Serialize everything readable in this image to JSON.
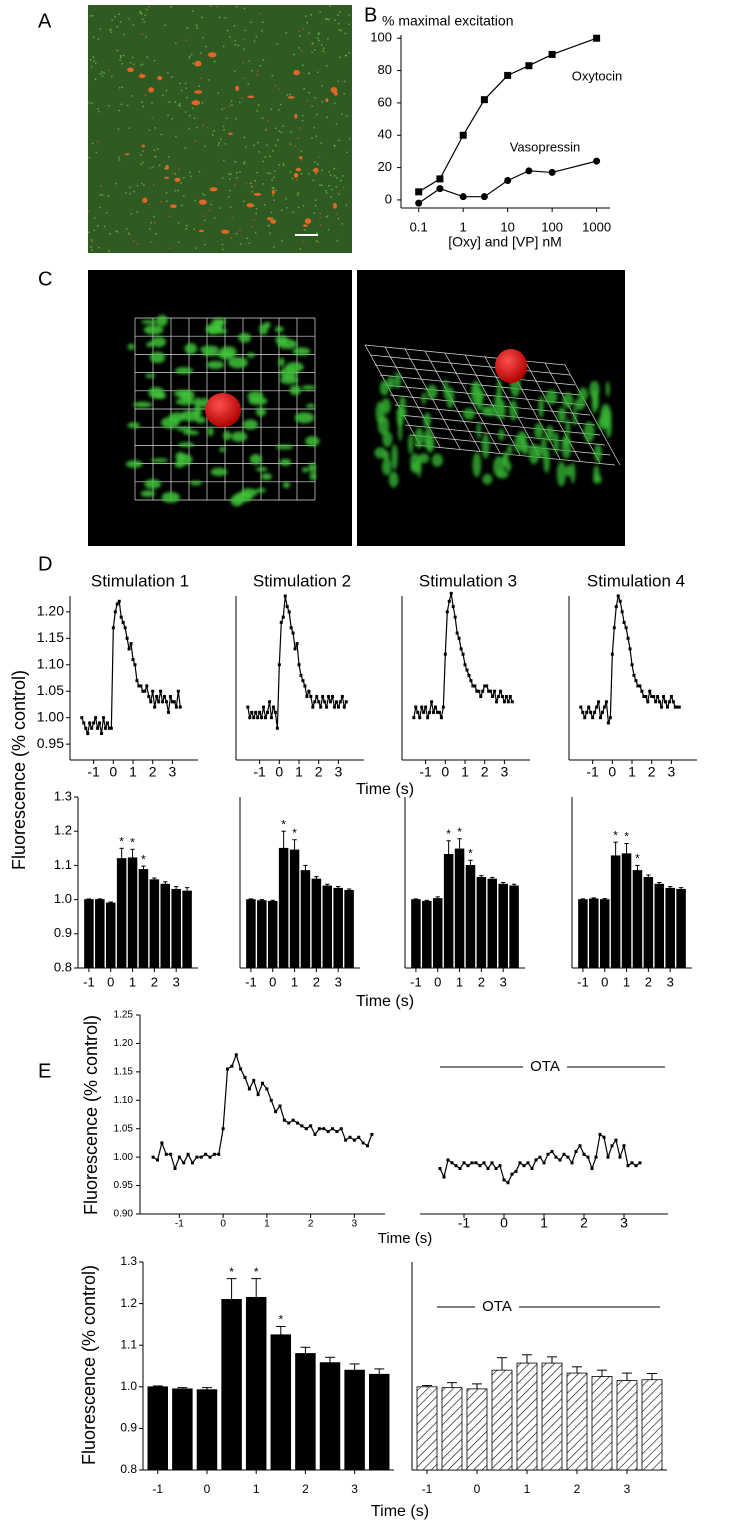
{
  "panel_labels": [
    "A",
    "B",
    "C",
    "D",
    "E"
  ],
  "chart_data": [
    {
      "type": "line",
      "ylabel": "% maximal excitation",
      "xlabel": "[Oxy] and [VP] nM",
      "xscale": "log",
      "x": [
        0.1,
        0.3,
        1,
        3,
        10,
        30,
        100,
        1000
      ],
      "series": [
        {
          "name": "Oxytocin",
          "color": "#000000",
          "marker": "square",
          "values": [
            5,
            13,
            40,
            62,
            77,
            83,
            90,
            100
          ]
        },
        {
          "name": "Vasopressin",
          "color": "#000000",
          "marker": "circle",
          "values": [
            -2,
            7,
            2,
            2,
            12,
            18,
            17,
            24
          ]
        }
      ],
      "xlim": [
        0.04,
        2000
      ],
      "ylim": [
        -5,
        102
      ],
      "xticks": [
        0.1,
        1,
        10,
        100,
        1000
      ],
      "yticks": [
        0,
        20,
        40,
        60,
        80,
        100
      ]
    },
    {
      "type": "line",
      "title": "Stimulation 1",
      "ylabel": "Fluorescence (% control)",
      "color": "#000000",
      "marker": "square",
      "x": [
        -1.6,
        -1.5,
        -1.4,
        -1.3,
        -1.2,
        -1.1,
        -1,
        -0.9,
        -0.8,
        -0.7,
        -0.6,
        -0.5,
        -0.4,
        -0.3,
        -0.2,
        -0.1,
        0,
        0.1,
        0.2,
        0.3,
        0.4,
        0.5,
        0.6,
        0.7,
        0.8,
        0.9,
        1,
        1.1,
        1.2,
        1.3,
        1.4,
        1.5,
        1.6,
        1.7,
        1.8,
        1.9,
        2,
        2.1,
        2.2,
        2.3,
        2.4,
        2.5,
        2.6,
        2.7,
        2.8,
        2.9,
        3,
        3.1,
        3.2,
        3.3,
        3.4
      ],
      "values": [
        1.0,
        0.99,
        0.98,
        0.97,
        0.99,
        0.98,
        0.99,
        1.0,
        0.98,
        0.99,
        0.97,
        1.0,
        0.98,
        0.99,
        0.98,
        0.98,
        1.17,
        1.2,
        1.215,
        1.22,
        1.19,
        1.18,
        1.17,
        1.15,
        1.13,
        1.14,
        1.11,
        1.1,
        1.07,
        1.06,
        1.06,
        1.05,
        1.05,
        1.06,
        1.04,
        1.03,
        1.05,
        1.02,
        1.04,
        1.03,
        1.05,
        1.03,
        1.04,
        1.03,
        1.01,
        1.04,
        1.03,
        1.03,
        1.02,
        1.05,
        1.02
      ],
      "xlim": [
        -2.2,
        4.3
      ],
      "ylim": [
        0.92,
        1.23
      ],
      "xticks": [
        -1,
        0,
        1,
        2,
        3
      ],
      "yticks": [
        0.95,
        {
          "value": 1,
          "label": "1.00"
        },
        1.05,
        {
          "value": 1.1,
          "label": "1.10"
        },
        1.15,
        {
          "value": 1.2,
          "label": "1.20"
        }
      ]
    },
    {
      "type": "line",
      "title": "Stimulation 2",
      "xlabel": "Time (s)",
      "color": "#000000",
      "marker": "square",
      "x": [
        -1.6,
        -1.5,
        -1.4,
        -1.3,
        -1.2,
        -1.1,
        -1,
        -0.9,
        -0.8,
        -0.7,
        -0.6,
        -0.5,
        -0.4,
        -0.3,
        -0.2,
        -0.1,
        0,
        0.1,
        0.2,
        0.3,
        0.4,
        0.5,
        0.6,
        0.7,
        0.8,
        0.9,
        1,
        1.1,
        1.2,
        1.3,
        1.4,
        1.5,
        1.6,
        1.7,
        1.8,
        1.9,
        2,
        2.1,
        2.2,
        2.3,
        2.4,
        2.5,
        2.6,
        2.7,
        2.8,
        2.9,
        3,
        3.1,
        3.2,
        3.3,
        3.4
      ],
      "values": [
        1.02,
        1.0,
        1.01,
        1.0,
        1.01,
        1.0,
        1.01,
        1.0,
        1.02,
        1.0,
        1.01,
        1.03,
        1.0,
        1.02,
        1.01,
        0.98,
        1.1,
        1.18,
        1.19,
        1.23,
        1.21,
        1.2,
        1.17,
        1.16,
        1.13,
        1.14,
        1.1,
        1.08,
        1.07,
        1.06,
        1.04,
        1.05,
        1.04,
        1.02,
        1.03,
        1.04,
        1.03,
        1.02,
        1.04,
        1.03,
        1.02,
        1.04,
        1.03,
        1.04,
        1.02,
        1.03,
        1.02,
        1.03,
        1.04,
        1.02,
        1.03
      ],
      "xlim": [
        -2.2,
        4.3
      ],
      "ylim": [
        0.92,
        1.23
      ],
      "xticks": [
        -1,
        0,
        1,
        2,
        3
      ]
    },
    {
      "type": "line",
      "title": "Stimulation 3",
      "color": "#000000",
      "marker": "square",
      "x": [
        -1.6,
        -1.5,
        -1.4,
        -1.3,
        -1.2,
        -1.1,
        -1,
        -0.9,
        -0.8,
        -0.7,
        -0.6,
        -0.5,
        -0.4,
        -0.3,
        -0.2,
        -0.1,
        0,
        0.1,
        0.2,
        0.3,
        0.4,
        0.5,
        0.6,
        0.7,
        0.8,
        0.9,
        1,
        1.1,
        1.2,
        1.3,
        1.4,
        1.5,
        1.6,
        1.7,
        1.8,
        1.9,
        2,
        2.1,
        2.2,
        2.3,
        2.4,
        2.5,
        2.6,
        2.7,
        2.8,
        2.9,
        3,
        3.1,
        3.2,
        3.3,
        3.4
      ],
      "values": [
        1.0,
        1.02,
        1.01,
        1.0,
        1.02,
        1.01,
        1.02,
        1.0,
        1.01,
        1.03,
        1.01,
        1.02,
        1.01,
        1.01,
        1.0,
        1.02,
        1.12,
        1.2,
        1.22,
        1.235,
        1.21,
        1.19,
        1.16,
        1.15,
        1.13,
        1.12,
        1.1,
        1.09,
        1.08,
        1.07,
        1.06,
        1.06,
        1.05,
        1.05,
        1.04,
        1.05,
        1.06,
        1.06,
        1.05,
        1.05,
        1.04,
        1.05,
        1.03,
        1.04,
        1.05,
        1.04,
        1.03,
        1.04,
        1.03,
        1.04,
        1.03
      ],
      "xlim": [
        -2.2,
        4.3
      ],
      "ylim": [
        0.92,
        1.23
      ],
      "xticks": [
        -1,
        0,
        1,
        2,
        3
      ]
    },
    {
      "type": "line",
      "title": "Stimulation 4",
      "color": "#000000",
      "marker": "square",
      "x": [
        -1.6,
        -1.5,
        -1.4,
        -1.3,
        -1.2,
        -1.1,
        -1,
        -0.9,
        -0.8,
        -0.7,
        -0.6,
        -0.5,
        -0.4,
        -0.3,
        -0.2,
        -0.1,
        0,
        0.1,
        0.2,
        0.3,
        0.4,
        0.5,
        0.6,
        0.7,
        0.8,
        0.9,
        1,
        1.1,
        1.2,
        1.3,
        1.4,
        1.5,
        1.6,
        1.7,
        1.8,
        1.9,
        2,
        2.1,
        2.2,
        2.3,
        2.4,
        2.5,
        2.6,
        2.7,
        2.8,
        2.9,
        3,
        3.1,
        3.2,
        3.3,
        3.4
      ],
      "values": [
        1.02,
        1.01,
        1.0,
        1.01,
        1.02,
        1.01,
        1.0,
        1.01,
        1.02,
        1.03,
        1.0,
        1.01,
        1.02,
        1.03,
        0.99,
        1.0,
        1.12,
        1.17,
        1.21,
        1.23,
        1.22,
        1.2,
        1.18,
        1.17,
        1.15,
        1.13,
        1.1,
        1.08,
        1.07,
        1.06,
        1.06,
        1.05,
        1.04,
        1.04,
        1.03,
        1.05,
        1.04,
        1.04,
        1.03,
        1.04,
        1.03,
        1.02,
        1.04,
        1.03,
        1.02,
        1.03,
        1.04,
        1.03,
        1.02,
        1.02,
        1.02
      ],
      "xlim": [
        -2.2,
        4.3
      ],
      "ylim": [
        0.92,
        1.23
      ],
      "xticks": [
        -1,
        0,
        1,
        2,
        3
      ]
    },
    {
      "type": "bar",
      "color": "#000000",
      "significance_label": "*",
      "x": [
        -1,
        -0.5,
        0,
        0.5,
        1,
        1.5,
        2,
        2.5,
        3,
        3.5
      ],
      "values": [
        1.0,
        1.0,
        0.99,
        1.12,
        1.122,
        1.088,
        1.058,
        1.045,
        1.03,
        1.025
      ],
      "errors": [
        0.002,
        0.002,
        0.003,
        0.03,
        0.025,
        0.01,
        0.005,
        0.007,
        0.008,
        0.01
      ],
      "significant": [
        false,
        false,
        false,
        true,
        true,
        true,
        false,
        false,
        false,
        false
      ],
      "xlim": [
        -1.5,
        4
      ],
      "ylim": [
        0.8,
        1.3
      ],
      "xticks": [
        -1,
        0,
        1,
        2,
        3
      ],
      "yticks": [
        0.8,
        0.9,
        {
          "value": 1,
          "label": "1.0"
        },
        1.1,
        1.2,
        1.3
      ]
    },
    {
      "type": "bar",
      "color": "#000000",
      "significance_label": "*",
      "xlabel": "Time (s)",
      "x": [
        -1,
        -0.5,
        0,
        0.5,
        1,
        1.5,
        2,
        2.5,
        3,
        3.5
      ],
      "values": [
        1.0,
        0.997,
        0.995,
        1.15,
        1.145,
        1.085,
        1.06,
        1.04,
        1.033,
        1.027
      ],
      "errors": [
        0.002,
        0.003,
        0.003,
        0.05,
        0.03,
        0.015,
        0.007,
        0.005,
        0.005,
        0.004
      ],
      "significant": [
        false,
        false,
        false,
        true,
        true,
        false,
        false,
        false,
        false,
        false
      ],
      "xlim": [
        -1.5,
        4
      ],
      "ylim": [
        0.8,
        1.3
      ],
      "xticks": [
        -1,
        0,
        1,
        2,
        3
      ]
    },
    {
      "type": "bar",
      "color": "#000000",
      "significance_label": "*",
      "x": [
        -1,
        -0.5,
        0,
        0.5,
        1,
        1.5,
        2,
        2.5,
        3,
        3.5
      ],
      "values": [
        1.0,
        0.995,
        1.003,
        1.132,
        1.148,
        1.1,
        1.065,
        1.06,
        1.045,
        1.04
      ],
      "errors": [
        0.002,
        0.003,
        0.005,
        0.04,
        0.03,
        0.015,
        0.005,
        0.005,
        0.005,
        0.005
      ],
      "significant": [
        false,
        false,
        false,
        true,
        true,
        true,
        false,
        false,
        false,
        false
      ],
      "xlim": [
        -1.5,
        4
      ],
      "ylim": [
        0.8,
        1.3
      ],
      "xticks": [
        -1,
        0,
        1,
        2,
        3
      ]
    },
    {
      "type": "bar",
      "color": "#000000",
      "significance_label": "*",
      "x": [
        -1,
        -0.5,
        0,
        0.5,
        1,
        1.5,
        2,
        2.5,
        3,
        3.5
      ],
      "values": [
        1.0,
        1.002,
        1.0,
        1.128,
        1.134,
        1.085,
        1.065,
        1.045,
        1.033,
        1.03
      ],
      "errors": [
        0.002,
        0.003,
        0.003,
        0.04,
        0.03,
        0.015,
        0.007,
        0.005,
        0.005,
        0.005
      ],
      "significant": [
        false,
        false,
        false,
        true,
        true,
        true,
        false,
        false,
        false,
        false
      ],
      "xlim": [
        -1.5,
        4
      ],
      "ylim": [
        0.8,
        1.3
      ],
      "xticks": [
        -1,
        0,
        1,
        2,
        3
      ]
    },
    {
      "type": "line",
      "ylabel": "Fluorescence (% control)",
      "xlabel": "Time (s)",
      "color": "#000000",
      "marker": "square",
      "x": [
        -1.6,
        -1.5,
        -1.4,
        -1.3,
        -1.2,
        -1.1,
        -1,
        -0.9,
        -0.8,
        -0.7,
        -0.6,
        -0.5,
        -0.4,
        -0.3,
        -0.2,
        -0.1,
        0,
        0.1,
        0.2,
        0.3,
        0.4,
        0.5,
        0.6,
        0.7,
        0.8,
        0.9,
        1,
        1.1,
        1.2,
        1.3,
        1.4,
        1.5,
        1.6,
        1.7,
        1.8,
        1.9,
        2,
        2.1,
        2.2,
        2.3,
        2.4,
        2.5,
        2.6,
        2.7,
        2.8,
        2.9,
        3,
        3.1,
        3.2,
        3.3,
        3.4
      ],
      "values": [
        1.0,
        0.995,
        1.025,
        1.005,
        1.005,
        0.98,
        1.0,
        0.99,
        1.005,
        0.99,
        1.0,
        1.0,
        1.005,
        1.0,
        1.005,
        1.005,
        1.05,
        1.155,
        1.16,
        1.18,
        1.155,
        1.14,
        1.12,
        1.135,
        1.11,
        1.13,
        1.12,
        1.1,
        1.08,
        1.09,
        1.065,
        1.06,
        1.065,
        1.06,
        1.055,
        1.05,
        1.055,
        1.04,
        1.05,
        1.05,
        1.045,
        1.05,
        1.045,
        1.05,
        1.03,
        1.035,
        1.03,
        1.035,
        1.025,
        1.02,
        1.04
      ],
      "xlim": [
        -1.9,
        3.7
      ],
      "ylim": [
        0.9,
        1.25
      ],
      "xticks": [
        -1,
        0,
        1,
        2,
        3
      ],
      "yticks": [
        {
          "value": 0.9,
          "label": "0.90"
        },
        0.95,
        {
          "value": 1,
          "label": "1.00"
        },
        1.05,
        {
          "value": 1.1,
          "label": "1.10"
        },
        1.15,
        {
          "value": 1.2,
          "label": "1.20"
        },
        1.25
      ]
    },
    {
      "type": "line",
      "annotation": "OTA",
      "color": "#000000",
      "marker": "square",
      "x": [
        -1.6,
        -1.5,
        -1.4,
        -1.3,
        -1.2,
        -1.1,
        -1,
        -0.9,
        -0.8,
        -0.7,
        -0.6,
        -0.5,
        -0.4,
        -0.3,
        -0.2,
        -0.1,
        0,
        0.1,
        0.2,
        0.3,
        0.4,
        0.5,
        0.6,
        0.7,
        0.8,
        0.9,
        1,
        1.1,
        1.2,
        1.3,
        1.4,
        1.5,
        1.6,
        1.7,
        1.8,
        1.9,
        2,
        2.1,
        2.2,
        2.3,
        2.4,
        2.5,
        2.6,
        2.7,
        2.8,
        2.9,
        3,
        3.1,
        3.2,
        3.3,
        3.4
      ],
      "values": [
        0.98,
        0.965,
        0.995,
        0.99,
        0.985,
        0.98,
        0.99,
        0.985,
        0.99,
        0.99,
        0.985,
        0.99,
        0.98,
        0.99,
        0.98,
        0.985,
        0.96,
        0.955,
        0.97,
        0.975,
        0.99,
        0.985,
        0.99,
        0.98,
        0.995,
        1.0,
        0.99,
        1.005,
        1.01,
        1.0,
        0.995,
        1.005,
        1.0,
        0.99,
        1.01,
        1.02,
        1.005,
        1.0,
        0.98,
        1.0,
        1.04,
        1.035,
        1.0,
        1.02,
        1.03,
        1.0,
        1.02,
        0.985,
        0.99,
        0.985,
        0.99
      ],
      "xlim": [
        -2.1,
        4.1
      ],
      "ylim": [
        0.9,
        1.25
      ],
      "xticks": [
        -1,
        0,
        1,
        2,
        3
      ]
    },
    {
      "type": "bar",
      "color": "#000000",
      "significance_label": "*",
      "ylabel": "Fluorescence (% control)",
      "xlabel": "Time (s)",
      "x": [
        -1,
        -0.5,
        0,
        0.5,
        1,
        1.5,
        2,
        2.5,
        3,
        3.5
      ],
      "values": [
        1.0,
        0.995,
        0.993,
        1.21,
        1.215,
        1.125,
        1.08,
        1.058,
        1.04,
        1.03
      ],
      "errors": [
        0.002,
        0.003,
        0.005,
        0.05,
        0.045,
        0.02,
        0.015,
        0.013,
        0.015,
        0.013
      ],
      "significant": [
        false,
        false,
        false,
        true,
        true,
        true,
        false,
        false,
        false,
        false
      ],
      "xlim": [
        -1.3,
        3.8
      ],
      "ylim": [
        0.8,
        1.3
      ],
      "xticks": [
        -1,
        0,
        1,
        2,
        3
      ],
      "yticks": [
        0.8,
        0.9,
        {
          "value": 1,
          "label": "1.0"
        },
        1.1,
        1.2,
        1.3
      ]
    },
    {
      "type": "bar",
      "color": "#ffffff",
      "hatch": true,
      "annotation": "OTA",
      "x": [
        -1,
        -0.5,
        0,
        0.5,
        1,
        1.5,
        2,
        2.5,
        3,
        3.5
      ],
      "values": [
        1.0,
        0.998,
        0.995,
        1.04,
        1.057,
        1.057,
        1.033,
        1.025,
        1.015,
        1.017
      ],
      "errors": [
        0.003,
        0.012,
        0.012,
        0.03,
        0.02,
        0.015,
        0.015,
        0.015,
        0.018,
        0.015
      ],
      "xlim": [
        -1.3,
        3.8
      ],
      "ylim": [
        0.8,
        1.3
      ],
      "xticks": [
        -1,
        0,
        1,
        2,
        3
      ]
    }
  ]
}
